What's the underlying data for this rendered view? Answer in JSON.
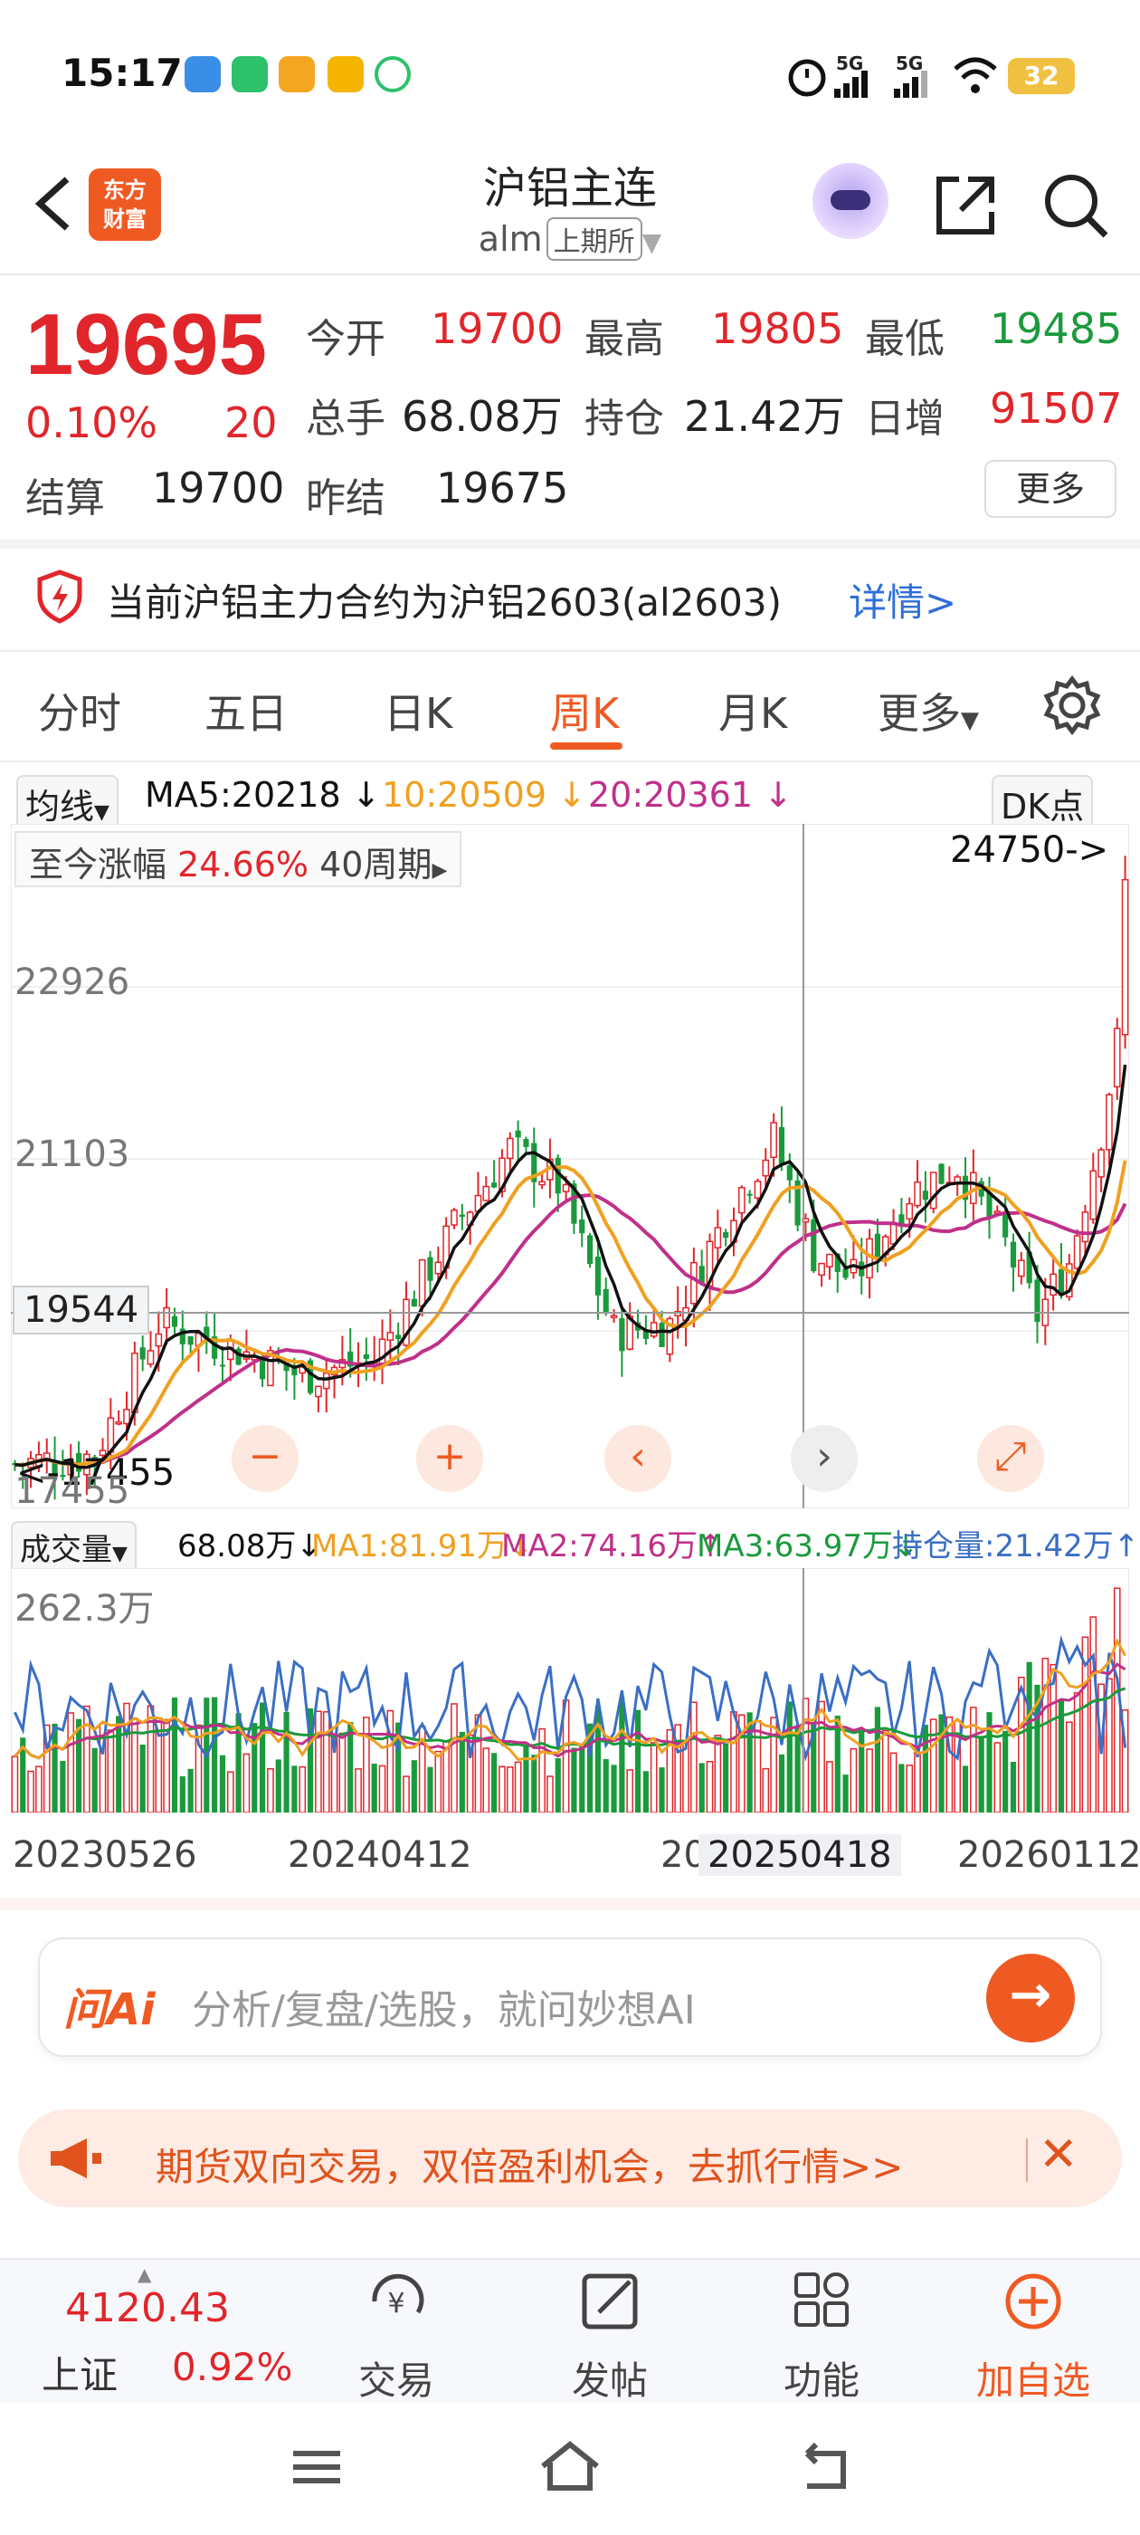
{
  "status_bar": {
    "time": "15:17",
    "battery": "32",
    "signal_1": "5G",
    "signal_2": "5G"
  },
  "header": {
    "logo_text_1": "东方",
    "logo_text_2": "财富",
    "title": "沪铝主连",
    "code": "alm",
    "exchange": "上期所"
  },
  "quote": {
    "price": "19695",
    "change_pct": "0.10%",
    "change": "20",
    "fields": [
      {
        "label": "今开",
        "value": "19700",
        "color": "red"
      },
      {
        "label": "最高",
        "value": "19805",
        "color": "red"
      },
      {
        "label": "最低",
        "value": "19485",
        "color": "green"
      },
      {
        "label": "总手",
        "value": "68.08万",
        "color": "black"
      },
      {
        "label": "持仓",
        "value": "21.42万",
        "color": "black"
      },
      {
        "label": "日增",
        "value": "91507",
        "color": "red"
      },
      {
        "label": "结算",
        "value": "19700",
        "color": "black"
      },
      {
        "label": "昨结",
        "value": "19675",
        "color": "black"
      }
    ],
    "more_label": "更多"
  },
  "notice": {
    "text": "当前沪铝主力合约为沪铝2603(al2603)",
    "link": "详情>"
  },
  "tabs": {
    "items": [
      "分时",
      "五日",
      "日K",
      "周K",
      "月K",
      "更多"
    ],
    "active": "周K"
  },
  "ma_row": {
    "dropdown": "均线",
    "ma5": "MA5:20218 ↓",
    "ma10": "10:20509 ↓",
    "ma20": "20:20361 ↓",
    "dk": "DK点"
  },
  "range_info": {
    "label": "至今涨幅",
    "pct": "24.66%",
    "period": "40周期"
  },
  "chart_labels": {
    "max_mark": "24750->",
    "y_high": "22926",
    "y_mid": "21103",
    "y_cross": "19544",
    "min_mark": "<-17455",
    "y_low": "17455"
  },
  "volume_row": {
    "dropdown": "成交量",
    "vol": "68.08万↓",
    "ma1": "MA1:81.91万↓",
    "ma2": "MA2:74.16万↑",
    "ma3": "MA3:63.97万↓",
    "oi": "持仓量:21.42万↑",
    "y_max": "262.3万"
  },
  "dates": {
    "d1": "20230526",
    "d2": "20240412",
    "d3": "20",
    "d4": "20250418",
    "d5": "20260112"
  },
  "ai": {
    "logo": "问Ai",
    "placeholder": "分析/复盘/选股，就问妙想AI"
  },
  "promo": {
    "text": "期货双向交易，双倍盈利机会，去抓行情>>"
  },
  "bottom_nav": {
    "index_value": "4120.43",
    "index_name": "上证",
    "index_pct": "0.92%",
    "items": [
      "交易",
      "发帖",
      "功能",
      "加自选"
    ]
  },
  "colors": {
    "up": "#e0262b",
    "down": "#1a9a3c",
    "accent": "#ef5a23",
    "link": "#2e6fd8",
    "ma5": "#111111",
    "ma10": "#f0a020",
    "ma20": "#c0308a",
    "oi_line": "#3a6fc4"
  }
}
